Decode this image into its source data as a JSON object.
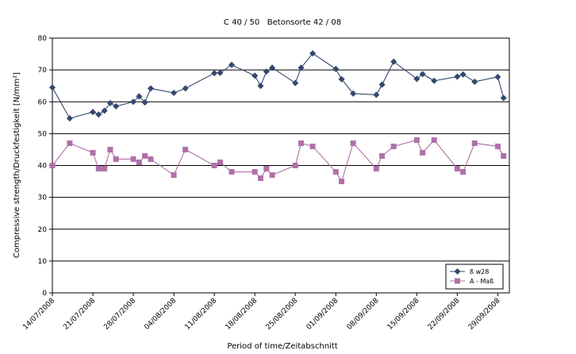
{
  "chart_data": {
    "type": "line",
    "title": "C 40 / 50   Betonsorte 42 / 08",
    "xlabel": "Period of time/Zeitabschnitt",
    "ylabel": "Compressive strength/Druckfestigkeit [N/mm²]",
    "ylim": [
      0,
      80
    ],
    "yticks": [
      0,
      10,
      20,
      30,
      40,
      50,
      60,
      70,
      80
    ],
    "xlim": [
      "2008-07-14",
      "2008-10-01"
    ],
    "xticks": [
      "2008-07-14",
      "2008-07-21",
      "2008-07-28",
      "2008-08-04",
      "2008-08-11",
      "2008-08-18",
      "2008-08-25",
      "2008-09-01",
      "2008-09-08",
      "2008-09-15",
      "2008-09-22",
      "2008-09-29"
    ],
    "xtick_labels": [
      "14/07/2008",
      "21/07/2008",
      "28/07/2008",
      "04/08/2008",
      "11/08/2008",
      "18/08/2008",
      "25/08/2008",
      "01/09/2008",
      "08/09/2008",
      "15/09/2008",
      "22/09/2008",
      "29/09/2008"
    ],
    "grid": "horizontal",
    "legend": "bottom-right",
    "series": [
      {
        "name": "ß w28",
        "color": "#34486e",
        "marker": "diamond",
        "x": [
          "2008-07-14",
          "2008-07-17",
          "2008-07-21",
          "2008-07-22",
          "2008-07-23",
          "2008-07-24",
          "2008-07-25",
          "2008-07-28",
          "2008-07-29",
          "2008-07-30",
          "2008-07-31",
          "2008-08-04",
          "2008-08-06",
          "2008-08-11",
          "2008-08-12",
          "2008-08-14",
          "2008-08-18",
          "2008-08-19",
          "2008-08-20",
          "2008-08-21",
          "2008-08-25",
          "2008-08-26",
          "2008-08-28",
          "2008-09-01",
          "2008-09-02",
          "2008-09-04",
          "2008-09-08",
          "2008-09-09",
          "2008-09-11",
          "2008-09-15",
          "2008-09-16",
          "2008-09-18",
          "2008-09-22",
          "2008-09-23",
          "2008-09-25",
          "2008-09-29",
          "2008-09-30"
        ],
        "y": [
          64.5,
          54.8,
          56.8,
          56.0,
          57.2,
          59.6,
          58.6,
          60.0,
          61.7,
          59.8,
          64.2,
          62.8,
          64.2,
          69.0,
          69.1,
          71.6,
          68.2,
          65.0,
          69.5,
          70.7,
          65.9,
          70.7,
          75.2,
          70.3,
          67.1,
          62.6,
          62.2,
          65.4,
          72.6,
          67.2,
          68.7,
          66.6,
          67.9,
          68.6,
          66.3,
          67.8,
          61.2
        ]
      },
      {
        "name": "A - Maß",
        "color": "#b070a8",
        "marker": "square",
        "x": [
          "2008-07-14",
          "2008-07-17",
          "2008-07-21",
          "2008-07-22",
          "2008-07-23",
          "2008-07-24",
          "2008-07-25",
          "2008-07-28",
          "2008-07-29",
          "2008-07-30",
          "2008-07-31",
          "2008-08-04",
          "2008-08-06",
          "2008-08-11",
          "2008-08-12",
          "2008-08-14",
          "2008-08-18",
          "2008-08-19",
          "2008-08-20",
          "2008-08-21",
          "2008-08-25",
          "2008-08-26",
          "2008-08-28",
          "2008-09-01",
          "2008-09-02",
          "2008-09-04",
          "2008-09-08",
          "2008-09-09",
          "2008-09-11",
          "2008-09-15",
          "2008-09-16",
          "2008-09-18",
          "2008-09-22",
          "2008-09-23",
          "2008-09-25",
          "2008-09-29",
          "2008-09-30"
        ],
        "y": [
          40,
          47,
          44,
          39,
          39,
          45,
          42,
          42,
          41,
          43,
          42,
          37,
          45,
          40,
          41,
          38,
          38,
          36,
          39,
          37,
          40,
          47,
          46,
          38,
          35,
          47,
          39,
          43,
          46,
          48,
          44,
          48,
          39,
          38,
          47,
          46,
          43
        ]
      }
    ]
  }
}
